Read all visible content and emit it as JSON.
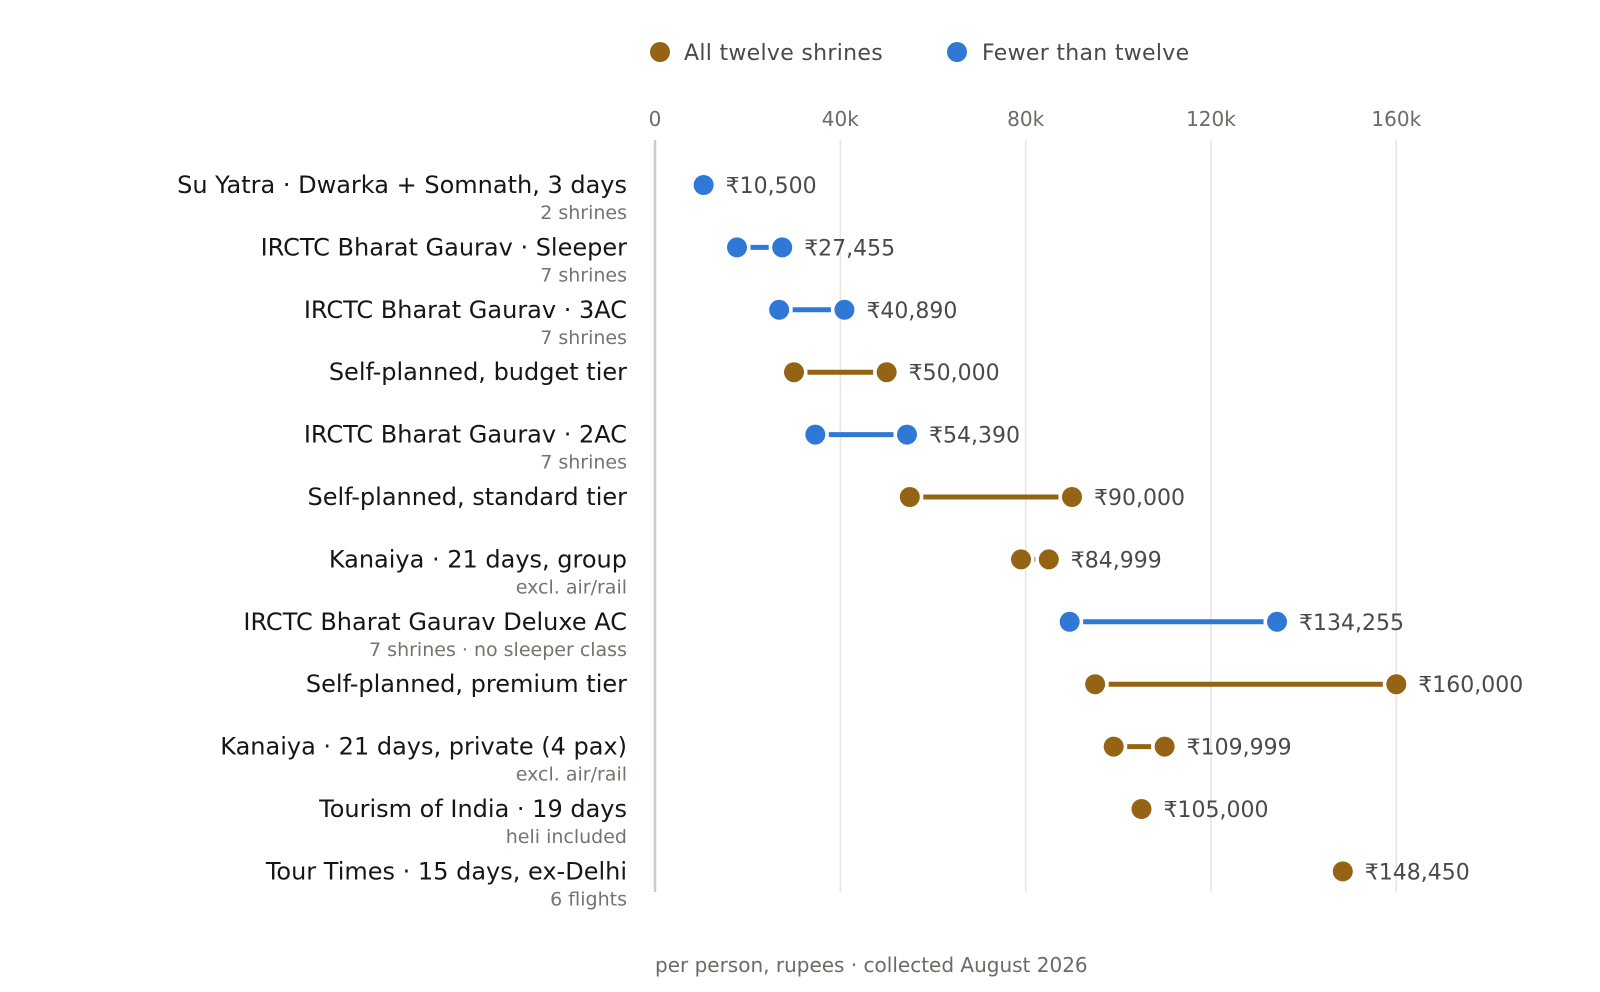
{
  "chart_data": {
    "type": "dumbbell",
    "xlim": [
      0,
      180000
    ],
    "x_ticks": [
      {
        "value": 0,
        "label": "0"
      },
      {
        "value": 40000,
        "label": "40k"
      },
      {
        "value": 80000,
        "label": "80k"
      },
      {
        "value": 120000,
        "label": "120k"
      },
      {
        "value": 160000,
        "label": "160k"
      }
    ],
    "grid": true,
    "legend_position": "top",
    "legend": [
      {
        "key": "all",
        "label": "All twelve shrines",
        "color": "#946414"
      },
      {
        "key": "fewer",
        "label": "Fewer than twelve",
        "color": "#2f78d6"
      }
    ],
    "note": "per person, rupees · collected August 2026",
    "rows": [
      {
        "label": "Su Yatra · Dwarka + Somnath, 3 days",
        "sub": "2 shrines",
        "group": "fewer",
        "low": 10500,
        "high": 10500,
        "value_label": "₹10,500"
      },
      {
        "label": "IRCTC Bharat Gaurav · Sleeper",
        "sub": "7 shrines",
        "group": "fewer",
        "low": 17700,
        "high": 27455,
        "value_label": "₹27,455"
      },
      {
        "label": "IRCTC Bharat Gaurav · 3AC",
        "sub": "7 shrines",
        "group": "fewer",
        "low": 26800,
        "high": 40890,
        "value_label": "₹40,890"
      },
      {
        "label": "Self-planned, budget tier",
        "sub": "",
        "group": "all",
        "low": 30000,
        "high": 50000,
        "value_label": "₹50,000"
      },
      {
        "label": "IRCTC Bharat Gaurav · 2AC",
        "sub": "7 shrines",
        "group": "fewer",
        "low": 34600,
        "high": 54390,
        "value_label": "₹54,390"
      },
      {
        "label": "Self-planned, standard tier",
        "sub": "",
        "group": "all",
        "low": 55000,
        "high": 90000,
        "value_label": "₹90,000"
      },
      {
        "label": "Kanaiya · 21 days, group",
        "sub": "excl. air/rail",
        "group": "all",
        "low": 79000,
        "high": 84999,
        "value_label": "₹84,999"
      },
      {
        "label": "IRCTC Bharat Gaurav Deluxe AC",
        "sub": "7 shrines · no sleeper class",
        "group": "fewer",
        "low": 89500,
        "high": 134255,
        "value_label": "₹134,255"
      },
      {
        "label": "Self-planned, premium tier",
        "sub": "",
        "group": "all",
        "low": 95000,
        "high": 160000,
        "value_label": "₹160,000"
      },
      {
        "label": "Kanaiya · 21 days, private (4 pax)",
        "sub": "excl. air/rail",
        "group": "all",
        "low": 99000,
        "high": 109999,
        "value_label": "₹109,999"
      },
      {
        "label": "Tourism of India · 19 days",
        "sub": "heli included",
        "group": "all",
        "low": 105000,
        "high": 105000,
        "value_label": "₹105,000"
      },
      {
        "label": "Tour Times · 15 days, ex-Delhi",
        "sub": "6 flights",
        "group": "all",
        "low": 148450,
        "high": 148450,
        "value_label": "₹148,450"
      }
    ]
  }
}
